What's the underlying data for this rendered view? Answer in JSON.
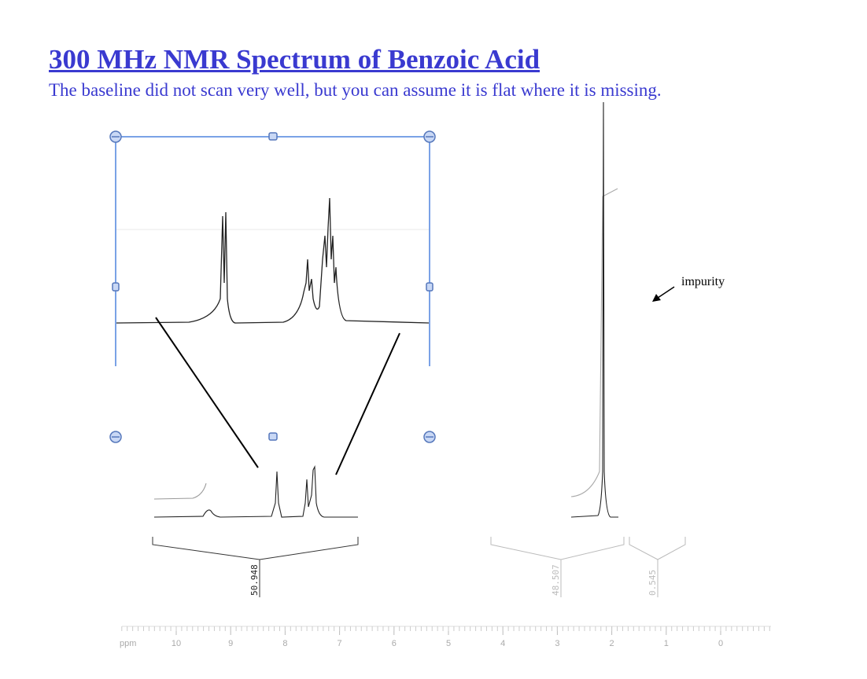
{
  "header": {
    "title": "300 MHz NMR Spectrum of Benzoic Acid",
    "subtitle": "The baseline did not scan very well, but you can assume it is flat where it is missing."
  },
  "spectrum": {
    "annotation": "impurity",
    "integrals": [
      50.948,
      48.507,
      0.545
    ],
    "axis": {
      "unit": "ppm",
      "ticks": [
        10,
        9,
        8,
        7,
        6,
        5,
        4,
        3,
        2,
        1,
        0
      ]
    }
  }
}
